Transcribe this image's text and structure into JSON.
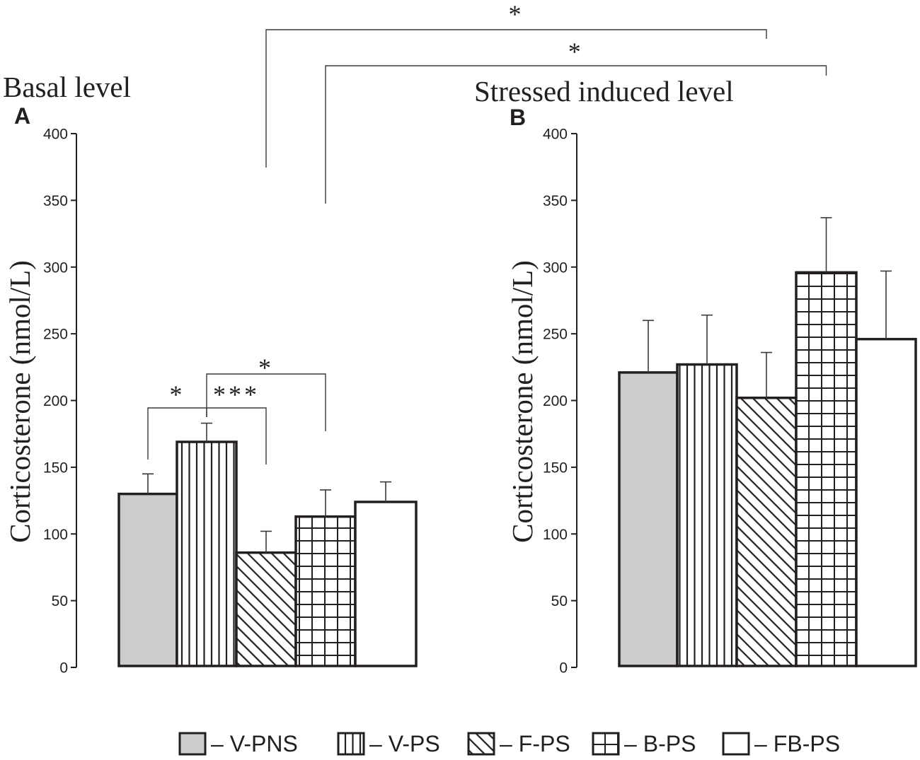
{
  "chart_data": [
    {
      "type": "bar",
      "panel": "A",
      "title": "Basal level",
      "ylabel": "Corticosterone (nmol/L)",
      "ylim": [
        0,
        400
      ],
      "yticks": [
        0,
        50,
        100,
        150,
        200,
        250,
        300,
        350,
        400
      ],
      "categories": [
        "V-PNS",
        "V-PS",
        "F-PS",
        "B-PS",
        "FB-PS"
      ],
      "values": [
        130,
        169,
        86,
        113,
        124
      ],
      "errors": [
        15,
        14,
        16,
        20,
        15
      ],
      "significance": [
        {
          "between": [
            0,
            1
          ],
          "label": "*"
        },
        {
          "between": [
            1,
            2
          ],
          "label": "***"
        },
        {
          "between": [
            1,
            3
          ],
          "label": "*"
        }
      ]
    },
    {
      "type": "bar",
      "panel": "B",
      "title": "Stressed induced level",
      "ylabel": "Corticosterone (nmol/L)",
      "ylim": [
        0,
        400
      ],
      "yticks": [
        0,
        50,
        100,
        150,
        200,
        250,
        300,
        350,
        400
      ],
      "categories": [
        "V-PNS",
        "V-PS",
        "F-PS",
        "B-PS",
        "FB-PS"
      ],
      "values": [
        221,
        227,
        202,
        296,
        246
      ],
      "errors": [
        39,
        37,
        34,
        41,
        51
      ],
      "significance": []
    }
  ],
  "cross_panel_significance": [
    {
      "from": [
        0,
        2
      ],
      "to": [
        1,
        2
      ],
      "label": "*"
    },
    {
      "from": [
        0,
        3
      ],
      "to": [
        1,
        3
      ],
      "label": "*"
    }
  ],
  "legend": {
    "dash": "–"
  },
  "colors": {
    "ink": "#231f20",
    "v_pns_fill": "#cccccc",
    "error_bar": "#3a3a3a",
    "bracket": "#3a3a3a",
    "background": "#ffffff"
  }
}
